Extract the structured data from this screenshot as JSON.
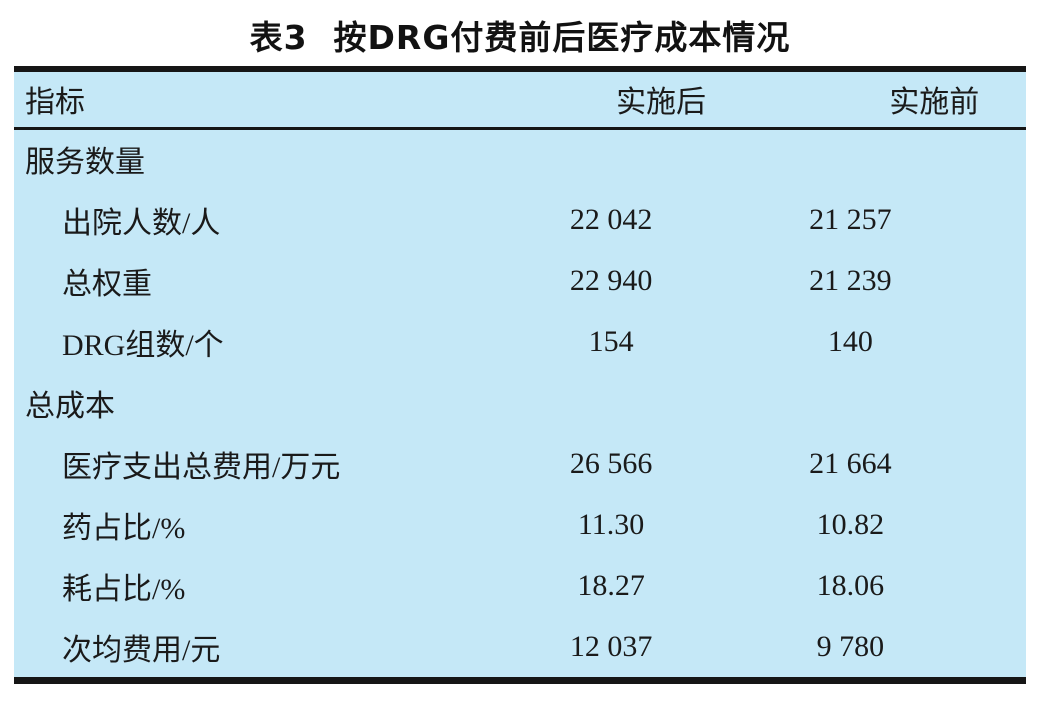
{
  "colors": {
    "table_background": "#c5e8f7",
    "rule": "#161616",
    "text": "#1a1a1a",
    "page_background": "#ffffff"
  },
  "header": {
    "table_no": "表3",
    "title": "按DRG付费前后医疗成本情况"
  },
  "table": {
    "columns": [
      "指标",
      "实施后",
      "实施前"
    ],
    "rows": [
      {
        "label": "服务数量",
        "after": "",
        "before": ""
      },
      {
        "label": "出院人数/人",
        "after": "22 042",
        "before": "21 257"
      },
      {
        "label": "总权重",
        "after": "22 940",
        "before": "21 239"
      },
      {
        "label": "DRG组数/个",
        "after": "154",
        "before": "140"
      },
      {
        "label": "总成本",
        "after": "",
        "before": ""
      },
      {
        "label": "医疗支出总费用/万元",
        "after": "26 566",
        "before": "21 664"
      },
      {
        "label": "药占比/%",
        "after": "11.30",
        "before": "10.82"
      },
      {
        "label": "耗占比/%",
        "after": "18.27",
        "before": "18.06"
      },
      {
        "label": "次均费用/元",
        "after": "12 037",
        "before": "9 780"
      }
    ]
  }
}
